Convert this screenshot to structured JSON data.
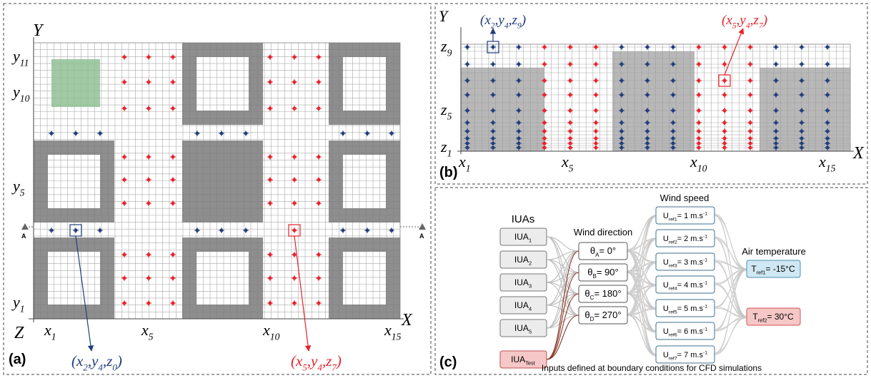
{
  "panel_a": {
    "tag": "(a)",
    "axis_y": "Y",
    "axis_z": "Z",
    "axis_x": "X",
    "x_labels": [
      [
        "x",
        {
          "sub": "1"
        }
      ],
      [
        "x",
        {
          "sub": "5"
        }
      ],
      [
        "x",
        {
          "sub": "10"
        }
      ],
      [
        "x",
        {
          "sub": "15"
        }
      ]
    ],
    "y_labels": [
      [
        "y",
        {
          "sub": "11"
        }
      ],
      [
        "y",
        {
          "sub": "10"
        }
      ],
      [
        "y",
        {
          "sub": "5"
        }
      ],
      [
        "y",
        {
          "sub": "1"
        }
      ]
    ],
    "section_marks": [
      "A",
      "A"
    ],
    "point_labels": [
      [
        "(x",
        {
          "sub": "2"
        },
        ",y",
        {
          "sub": "4"
        },
        ",z",
        {
          "sub": "0"
        },
        ")"
      ],
      [
        "(x",
        {
          "sub": "5"
        },
        ",y",
        {
          "sub": "4"
        },
        ",z",
        {
          "sub": "7"
        },
        ")"
      ]
    ]
  },
  "panel_b": {
    "tag": "(b)",
    "axis_y": "Y",
    "axis_x": "X",
    "x_labels": [
      [
        "x",
        {
          "sub": "1"
        }
      ],
      [
        "x",
        {
          "sub": "5"
        }
      ],
      [
        "x",
        {
          "sub": "10"
        }
      ],
      [
        "x",
        {
          "sub": "15"
        }
      ]
    ],
    "z_labels": [
      [
        "z",
        {
          "sub": "9"
        }
      ],
      [
        "z",
        {
          "sub": "5"
        }
      ],
      [
        "z",
        {
          "sub": "1"
        }
      ]
    ],
    "point_labels": [
      [
        "(x",
        {
          "sub": "2"
        },
        ",y",
        {
          "sub": "4"
        },
        ",z",
        {
          "sub": "9"
        },
        ")"
      ],
      [
        "(x",
        {
          "sub": "5"
        },
        ",y",
        {
          "sub": "4"
        },
        ",z",
        {
          "sub": "7"
        },
        ")"
      ]
    ]
  },
  "panel_c": {
    "tag": "(c)",
    "iuas": {
      "title": "IUAs",
      "items": [
        [
          "IUA",
          {
            "sub": "1"
          }
        ],
        [
          "IUA",
          {
            "sub": "2"
          }
        ],
        [
          "IUA",
          {
            "sub": "3"
          }
        ],
        [
          "IUA",
          {
            "sub": "4"
          }
        ],
        [
          "IUA",
          {
            "sub": "5"
          }
        ],
        [
          "IUA",
          {
            "sub": "Test"
          }
        ]
      ]
    },
    "wind_direction": {
      "title": "Wind direction",
      "items": [
        [
          "θ",
          {
            "sub": "A"
          },
          "= 0°"
        ],
        [
          "θ",
          {
            "sub": "B"
          },
          "= 90°"
        ],
        [
          "θ",
          {
            "sub": "C"
          },
          "= 180°"
        ],
        [
          "θ",
          {
            "sub": "D"
          },
          "= 270°"
        ]
      ]
    },
    "wind_speed": {
      "title": "Wind speed",
      "items": [
        [
          "U",
          {
            "sub": "ref1"
          },
          "= 1  m.s",
          {
            "sup": "-1"
          }
        ],
        [
          "U",
          {
            "sub": "ref2"
          },
          "= 2  m.s",
          {
            "sup": "-1"
          }
        ],
        [
          "U",
          {
            "sub": "ref3"
          },
          "= 3  m.s",
          {
            "sup": "-1"
          }
        ],
        [
          "U",
          {
            "sub": "ref4"
          },
          "= 4  m.s",
          {
            "sup": "-1"
          }
        ],
        [
          "U",
          {
            "sub": "ref5"
          },
          "= 5  m.s",
          {
            "sup": "-1"
          }
        ],
        [
          "U",
          {
            "sub": "ref6"
          },
          "= 6  m.s",
          {
            "sup": "-1"
          }
        ],
        [
          "U",
          {
            "sub": "ref7"
          },
          "= 7  m.s",
          {
            "sup": "-1"
          }
        ]
      ]
    },
    "air_temperature": {
      "title": "Air temperature",
      "items": [
        [
          "T",
          {
            "sub": "ref1"
          },
          "= -15°C"
        ],
        [
          "T",
          {
            "sub": "ref2"
          },
          "= 30°C"
        ]
      ]
    },
    "caption": "Inputs defined at boundary conditions for CFD simulations"
  }
}
